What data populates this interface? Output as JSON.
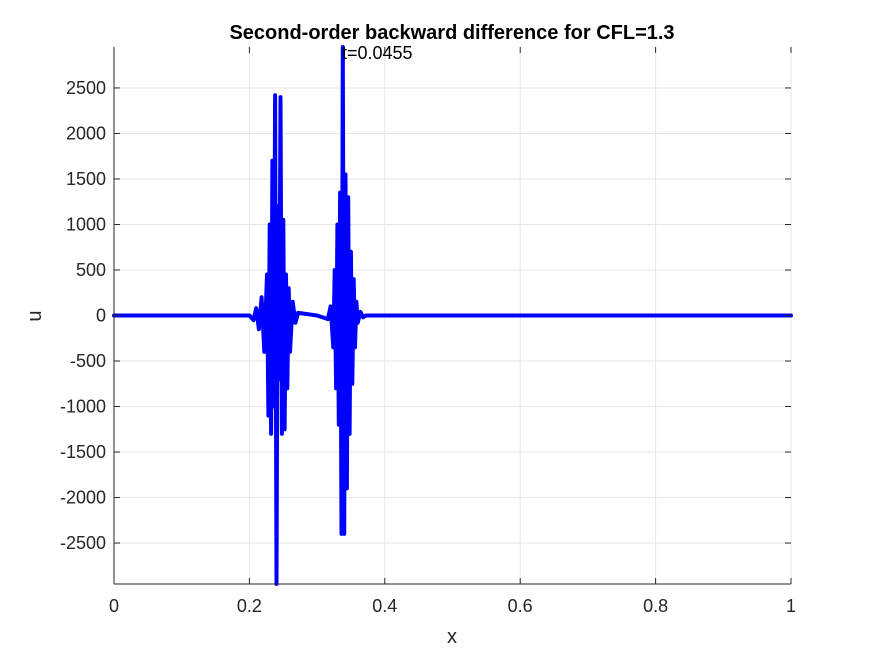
{
  "chart_data": {
    "type": "line",
    "title": "Second-order backward difference for CFL=1.3",
    "xlabel": "x",
    "ylabel": "u",
    "annotation": "t=0.0455",
    "xlim": [
      0,
      1
    ],
    "ylim": [
      -2950,
      2950
    ],
    "xticks": [
      0,
      0.2,
      0.4,
      0.6,
      0.8,
      1
    ],
    "xtick_labels": [
      "0",
      "0.2",
      "0.4",
      "0.6",
      "0.8",
      "1"
    ],
    "yticks": [
      -2500,
      -2000,
      -1500,
      -1000,
      -500,
      0,
      500,
      1000,
      1500,
      2000,
      2500
    ],
    "ytick_labels": [
      "-2500",
      "-2000",
      "-1500",
      "-1000",
      "-500",
      "0",
      "500",
      "1000",
      "1500",
      "2000",
      "2500"
    ],
    "grid": true,
    "line_color": "#0000ff",
    "series": [
      {
        "x": [
          0,
          0.2,
          0.206,
          0.21,
          0.214,
          0.218,
          0.222,
          0.226,
          0.228,
          0.23,
          0.232,
          0.234,
          0.236,
          0.238,
          0.24,
          0.242,
          0.244,
          0.246,
          0.248,
          0.25,
          0.252,
          0.254,
          0.256,
          0.258,
          0.26,
          0.264,
          0.268,
          0.272,
          0.3,
          0.316,
          0.32,
          0.324,
          0.326,
          0.328,
          0.33,
          0.332,
          0.334,
          0.336,
          0.338,
          0.34,
          0.342,
          0.344,
          0.346,
          0.348,
          0.35,
          0.352,
          0.354,
          0.356,
          0.358,
          0.36,
          0.364,
          0.368,
          0.372,
          1
        ],
        "y": [
          0,
          0,
          -50,
          80,
          -150,
          200,
          -400,
          450,
          -1100,
          1000,
          -1300,
          1700,
          -1000,
          2420,
          -2950,
          1200,
          -700,
          2400,
          -1300,
          1050,
          -1250,
          450,
          -800,
          300,
          -400,
          150,
          -80,
          30,
          0,
          -40,
          100,
          -350,
          500,
          -800,
          1000,
          -1200,
          1350,
          -2400,
          2950,
          -2400,
          1550,
          -1900,
          1300,
          -1300,
          700,
          -750,
          400,
          -350,
          150,
          -80,
          40,
          -20,
          0,
          0
        ]
      }
    ]
  }
}
